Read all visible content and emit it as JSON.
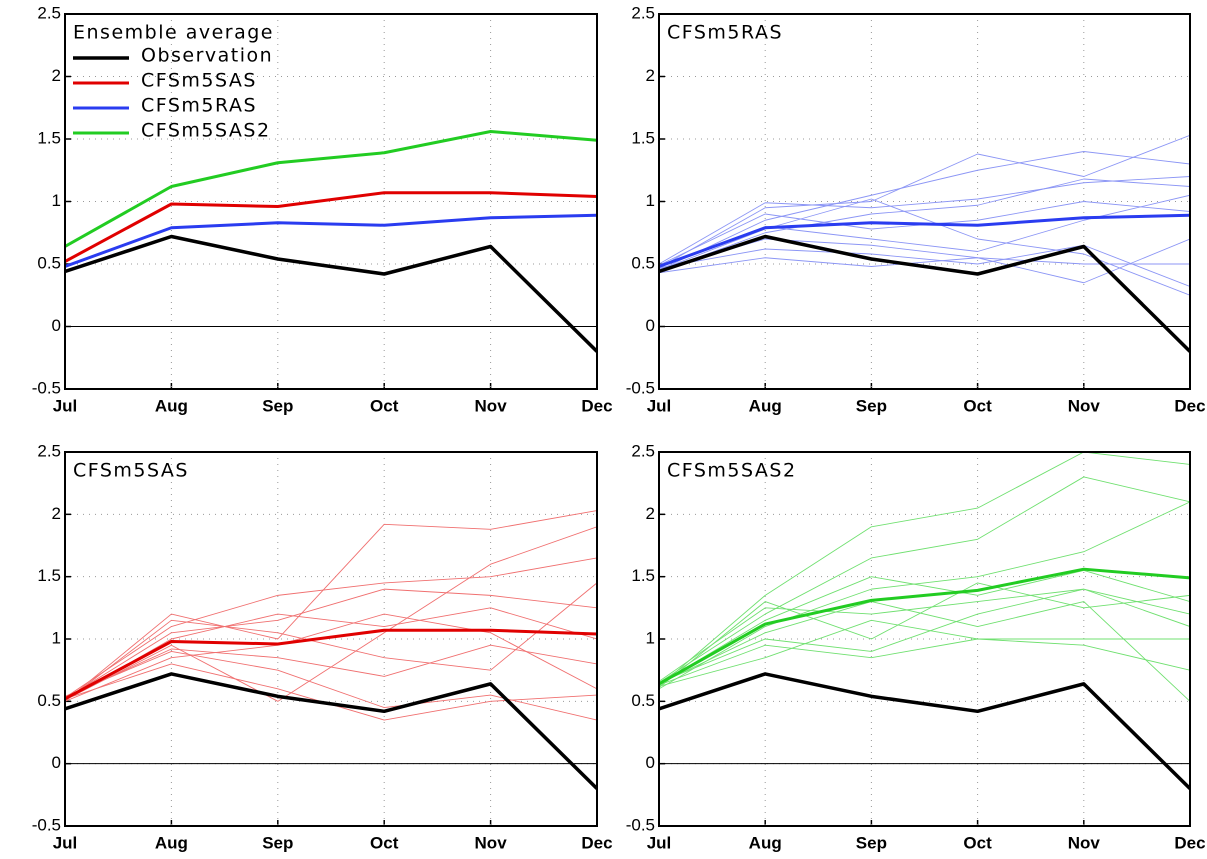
{
  "chart_data": [
    {
      "type": "line",
      "title": "Ensemble average",
      "legend": "upper left",
      "grid": true,
      "zero_line": true,
      "categories": [
        "Jul",
        "Aug",
        "Sep",
        "Oct",
        "Nov",
        "Dec"
      ],
      "ylim": [
        -0.5,
        2.5
      ],
      "yticks": [
        -0.5,
        0,
        0.5,
        1,
        1.5,
        2,
        2.5
      ],
      "series": [
        {
          "name": "Observation",
          "color": "#000000",
          "width": 3.5,
          "values": [
            0.44,
            0.72,
            0.54,
            0.42,
            0.64,
            -0.2
          ]
        },
        {
          "name": "CFSm5SAS",
          "color": "#e00000",
          "width": 3,
          "values": [
            0.52,
            0.98,
            0.96,
            1.07,
            1.07,
            1.04
          ]
        },
        {
          "name": "CFSm5RAS",
          "color": "#2a3cf0",
          "width": 3,
          "values": [
            0.48,
            0.79,
            0.83,
            0.81,
            0.87,
            0.89
          ]
        },
        {
          "name": "CFSm5SAS2",
          "color": "#22cc22",
          "width": 3,
          "values": [
            0.64,
            1.12,
            1.31,
            1.39,
            1.56,
            1.49
          ]
        }
      ]
    },
    {
      "type": "line",
      "title": "CFSm5RAS",
      "grid": true,
      "zero_line": true,
      "categories": [
        "Jul",
        "Aug",
        "Sep",
        "Oct",
        "Nov",
        "Dec"
      ],
      "ylim": [
        -0.5,
        2.5
      ],
      "yticks": [
        -0.5,
        0,
        0.5,
        1,
        1.5,
        2,
        2.5
      ],
      "series": [
        {
          "color": "#8c96f5",
          "width": 0.9,
          "values": [
            0.47,
            0.95,
            1.0,
            1.38,
            1.2,
            1.53
          ]
        },
        {
          "color": "#8c96f5",
          "width": 0.9,
          "values": [
            0.45,
            0.85,
            1.05,
            1.25,
            1.4,
            1.3
          ]
        },
        {
          "color": "#8c96f5",
          "width": 0.9,
          "values": [
            0.5,
            0.99,
            0.95,
            1.02,
            1.15,
            1.2
          ]
        },
        {
          "color": "#8c96f5",
          "width": 0.9,
          "values": [
            0.44,
            0.75,
            0.9,
            0.97,
            1.18,
            1.12
          ]
        },
        {
          "color": "#8c96f5",
          "width": 0.9,
          "values": [
            0.48,
            0.8,
            0.7,
            0.6,
            0.85,
            1.05
          ]
        },
        {
          "color": "#8c96f5",
          "width": 0.9,
          "values": [
            0.46,
            0.7,
            0.65,
            0.55,
            0.5,
            0.5
          ]
        },
        {
          "color": "#8c96f5",
          "width": 0.9,
          "values": [
            0.43,
            0.55,
            0.48,
            0.55,
            0.35,
            0.7
          ]
        },
        {
          "color": "#8c96f5",
          "width": 0.9,
          "values": [
            0.49,
            0.9,
            0.78,
            0.85,
            1.0,
            0.92
          ]
        },
        {
          "color": "#8c96f5",
          "width": 0.9,
          "values": [
            0.47,
            0.62,
            0.58,
            0.5,
            0.65,
            0.32
          ]
        },
        {
          "color": "#8c96f5",
          "width": 0.9,
          "values": [
            0.45,
            0.78,
            1.02,
            0.7,
            0.58,
            0.25
          ]
        },
        {
          "color": "#2a3cf0",
          "width": 3,
          "values": [
            0.48,
            0.79,
            0.83,
            0.81,
            0.87,
            0.89
          ]
        },
        {
          "color": "#000000",
          "width": 3.5,
          "values": [
            0.44,
            0.72,
            0.54,
            0.42,
            0.64,
            -0.2
          ]
        }
      ]
    },
    {
      "type": "line",
      "title": "CFSm5SAS",
      "grid": true,
      "zero_line": true,
      "categories": [
        "Jul",
        "Aug",
        "Sep",
        "Oct",
        "Nov",
        "Dec"
      ],
      "ylim": [
        -0.5,
        2.5
      ],
      "yticks": [
        -0.5,
        0,
        0.5,
        1,
        1.5,
        2,
        2.5
      ],
      "series": [
        {
          "color": "#f07070",
          "width": 0.9,
          "values": [
            0.5,
            1.2,
            1.0,
            1.92,
            1.88,
            2.03
          ]
        },
        {
          "color": "#f07070",
          "width": 0.9,
          "values": [
            0.53,
            1.1,
            1.35,
            1.45,
            1.5,
            1.65
          ]
        },
        {
          "color": "#f07070",
          "width": 0.9,
          "values": [
            0.51,
            0.95,
            0.5,
            1.05,
            1.6,
            1.9
          ]
        },
        {
          "color": "#f07070",
          "width": 0.9,
          "values": [
            0.52,
            1.05,
            1.15,
            1.4,
            1.35,
            1.25
          ]
        },
        {
          "color": "#f07070",
          "width": 0.9,
          "values": [
            0.5,
            0.85,
            0.95,
            1.2,
            1.05,
            0.6
          ]
        },
        {
          "color": "#f07070",
          "width": 0.9,
          "values": [
            0.54,
            0.9,
            0.75,
            0.45,
            0.55,
            0.35
          ]
        },
        {
          "color": "#f07070",
          "width": 0.9,
          "values": [
            0.5,
            1.15,
            1.05,
            0.85,
            0.75,
            1.45
          ]
        },
        {
          "color": "#f07070",
          "width": 0.9,
          "values": [
            0.52,
            0.8,
            0.6,
            0.35,
            0.5,
            0.55
          ]
        },
        {
          "color": "#f07070",
          "width": 0.9,
          "values": [
            0.51,
            1.0,
            1.2,
            1.1,
            1.25,
            1.0
          ]
        },
        {
          "color": "#f07070",
          "width": 0.9,
          "values": [
            0.53,
            0.92,
            0.85,
            0.7,
            0.95,
            0.8
          ]
        },
        {
          "color": "#e00000",
          "width": 3,
          "values": [
            0.52,
            0.98,
            0.96,
            1.07,
            1.07,
            1.04
          ]
        },
        {
          "color": "#000000",
          "width": 3.5,
          "values": [
            0.44,
            0.72,
            0.54,
            0.42,
            0.64,
            -0.2
          ]
        }
      ]
    },
    {
      "type": "line",
      "title": "CFSm5SAS2",
      "grid": true,
      "zero_line": true,
      "categories": [
        "Jul",
        "Aug",
        "Sep",
        "Oct",
        "Nov",
        "Dec"
      ],
      "ylim": [
        -0.5,
        2.5
      ],
      "yticks": [
        -0.5,
        0,
        0.5,
        1,
        1.5,
        2,
        2.5
      ],
      "series": [
        {
          "color": "#70e070",
          "width": 0.9,
          "values": [
            0.62,
            1.35,
            1.9,
            2.05,
            2.5,
            2.4
          ]
        },
        {
          "color": "#70e070",
          "width": 0.9,
          "values": [
            0.65,
            1.2,
            1.65,
            1.8,
            2.3,
            2.1
          ]
        },
        {
          "color": "#70e070",
          "width": 0.9,
          "values": [
            0.6,
            1.1,
            1.4,
            1.5,
            1.7,
            2.1
          ]
        },
        {
          "color": "#70e070",
          "width": 0.9,
          "values": [
            0.66,
            1.25,
            1.2,
            1.3,
            1.4,
            1.2
          ]
        },
        {
          "color": "#70e070",
          "width": 0.9,
          "values": [
            0.63,
            0.95,
            0.85,
            1.0,
            0.95,
            0.75
          ]
        },
        {
          "color": "#70e070",
          "width": 0.9,
          "values": [
            0.64,
            1.05,
            1.3,
            1.1,
            1.3,
            0.5
          ]
        },
        {
          "color": "#70e070",
          "width": 0.9,
          "values": [
            0.61,
            1.3,
            1.0,
            1.45,
            1.25,
            1.35
          ]
        },
        {
          "color": "#70e070",
          "width": 0.9,
          "values": [
            0.65,
            1.0,
            0.9,
            1.2,
            1.4,
            1.1
          ]
        },
        {
          "color": "#70e070",
          "width": 0.9,
          "values": [
            0.62,
            0.85,
            1.15,
            1.0,
            1.0,
            1.0
          ]
        },
        {
          "color": "#70e070",
          "width": 0.9,
          "values": [
            0.64,
            1.15,
            1.5,
            1.35,
            1.55,
            1.3
          ]
        },
        {
          "color": "#22cc22",
          "width": 3,
          "values": [
            0.64,
            1.12,
            1.31,
            1.39,
            1.56,
            1.49
          ]
        },
        {
          "color": "#000000",
          "width": 3.5,
          "values": [
            0.44,
            0.72,
            0.54,
            0.42,
            0.64,
            -0.2
          ]
        }
      ]
    }
  ]
}
